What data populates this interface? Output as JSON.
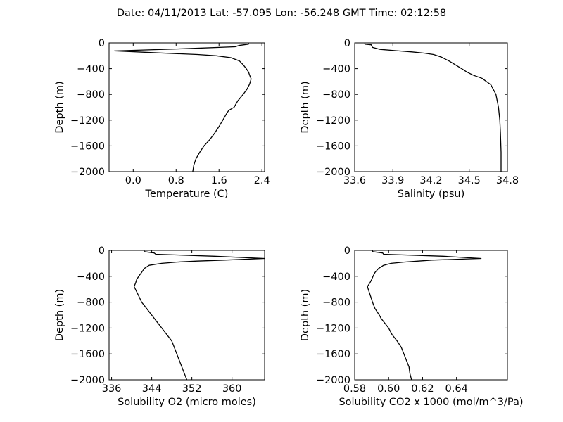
{
  "figure_title": "Date: 04/11/2013  Lat:  -57.095 Lon:  -56.248  GMT Time: 02:12:58",
  "chart_data": [
    {
      "type": "line",
      "xlabel": "Temperature (C)",
      "ylabel": "Depth (m)",
      "xlim": [
        -0.45,
        2.45
      ],
      "ylim": [
        -2000,
        0
      ],
      "xticks": [
        0.0,
        0.8,
        1.6,
        2.4
      ],
      "xtick_labels": [
        "0.0",
        "0.8",
        "1.6",
        "2.4"
      ],
      "yticks": [
        0,
        -400,
        -800,
        -1200,
        -1600,
        -2000
      ],
      "ytick_labels": [
        "0",
        "−400",
        "−800",
        "−1200",
        "−1600",
        "−2000"
      ],
      "grid": false,
      "series": [
        {
          "x": [
            2.15,
            2.15,
            1.97,
            1.9,
            0.98,
            -0.35,
            0.32,
            0.75,
            1.2,
            1.55,
            1.82,
            1.98,
            2.05,
            2.1,
            2.15,
            2.17,
            2.2,
            2.17,
            2.12,
            2.05,
            1.95,
            1.88,
            1.78,
            1.74,
            1.67,
            1.6,
            1.52,
            1.43,
            1.32,
            1.24,
            1.17,
            1.13,
            1.11
          ],
          "y": [
            0,
            -20,
            -40,
            -60,
            -90,
            -125,
            -150,
            -165,
            -180,
            -200,
            -230,
            -280,
            -340,
            -390,
            -450,
            -500,
            -560,
            -640,
            -720,
            -800,
            -900,
            -1000,
            -1050,
            -1100,
            -1200,
            -1300,
            -1400,
            -1500,
            -1600,
            -1700,
            -1800,
            -1900,
            -2000
          ]
        }
      ]
    },
    {
      "type": "line",
      "xlabel": "Salinity (psu)",
      "ylabel": "Depth (m)",
      "xlim": [
        33.6,
        34.8
      ],
      "ylim": [
        -2000,
        0
      ],
      "xticks": [
        33.6,
        33.9,
        34.2,
        34.5,
        34.8
      ],
      "xtick_labels": [
        "33.6",
        "33.9",
        "34.2",
        "34.5",
        "34.8"
      ],
      "yticks": [
        0,
        -400,
        -800,
        -1200,
        -1600,
        -2000
      ],
      "ytick_labels": [
        "0",
        "−400",
        "−800",
        "−1200",
        "−1600",
        "−2000"
      ],
      "grid": false,
      "series": [
        {
          "x": [
            33.68,
            33.68,
            33.73,
            33.74,
            33.8,
            33.92,
            34.05,
            34.15,
            34.22,
            34.28,
            34.34,
            34.39,
            34.44,
            34.48,
            34.53,
            34.6,
            34.67,
            34.71,
            34.73,
            34.74,
            34.745,
            34.75,
            34.75
          ],
          "y": [
            0,
            -20,
            -30,
            -70,
            -100,
            -120,
            -140,
            -160,
            -180,
            -220,
            -280,
            -340,
            -400,
            -450,
            -500,
            -550,
            -650,
            -800,
            -1000,
            -1200,
            -1400,
            -1700,
            -2000
          ]
        }
      ]
    },
    {
      "type": "line",
      "xlabel": "Solubility O2 (micro moles)",
      "ylabel": "Depth (m)",
      "xlim": [
        335.5,
        366.5
      ],
      "ylim": [
        -2000,
        0
      ],
      "xticks": [
        336,
        344,
        352,
        360
      ],
      "xtick_labels": [
        "336",
        "344",
        "352",
        "360"
      ],
      "yticks": [
        0,
        -400,
        -800,
        -1200,
        -1600,
        -2000
      ],
      "ytick_labels": [
        "0",
        "−400",
        "−800",
        "−1200",
        "−1600",
        "−2000"
      ],
      "grid": false,
      "series": [
        {
          "x": [
            342.5,
            342.5,
            344.5,
            344.8,
            356.5,
            366.5,
            358.5,
            353,
            349,
            346,
            343.5,
            342.5,
            342,
            341.5,
            341,
            340.8,
            340.5,
            341,
            341.5,
            342,
            343,
            344,
            344.5,
            345,
            346,
            347,
            348,
            348.5,
            349,
            349.5,
            350,
            350.5,
            351
          ],
          "y": [
            0,
            -20,
            -40,
            -60,
            -90,
            -125,
            -150,
            -165,
            -180,
            -200,
            -230,
            -280,
            -340,
            -390,
            -450,
            -500,
            -560,
            -640,
            -720,
            -800,
            -900,
            -1000,
            -1050,
            -1100,
            -1200,
            -1300,
            -1400,
            -1500,
            -1600,
            -1700,
            -1800,
            -1900,
            -2000
          ]
        }
      ]
    },
    {
      "type": "line",
      "xlabel": "Solubility CO2 x 1000 (mol/m^3/Pa)",
      "ylabel": "Depth (m)",
      "xlim": [
        0.58,
        0.67
      ],
      "ylim": [
        -2000,
        0
      ],
      "xticks": [
        0.58,
        0.6,
        0.62,
        0.64
      ],
      "xtick_labels": [
        "0.58",
        "0.60",
        "0.62",
        "0.64"
      ],
      "yticks": [
        0,
        -400,
        -800,
        -1200,
        -1600,
        -2000
      ],
      "ytick_labels": [
        "0",
        "−400",
        "−800",
        "−1200",
        "−1600",
        "−2000"
      ],
      "grid": false,
      "series": [
        {
          "x": [
            0.5905,
            0.5905,
            0.5965,
            0.597,
            0.632,
            0.6545,
            0.6255,
            0.6175,
            0.609,
            0.6015,
            0.597,
            0.594,
            0.592,
            0.591,
            0.59,
            0.589,
            0.5875,
            0.5885,
            0.5895,
            0.5905,
            0.592,
            0.5945,
            0.5955,
            0.597,
            0.6,
            0.602,
            0.605,
            0.6075,
            0.609,
            0.6105,
            0.612,
            0.6125,
            0.6135
          ],
          "y": [
            0,
            -20,
            -40,
            -60,
            -90,
            -125,
            -150,
            -165,
            -180,
            -200,
            -230,
            -280,
            -340,
            -390,
            -450,
            -500,
            -560,
            -640,
            -720,
            -800,
            -900,
            -1000,
            -1050,
            -1100,
            -1200,
            -1300,
            -1400,
            -1500,
            -1600,
            -1700,
            -1800,
            -1900,
            -2000
          ]
        }
      ]
    }
  ]
}
